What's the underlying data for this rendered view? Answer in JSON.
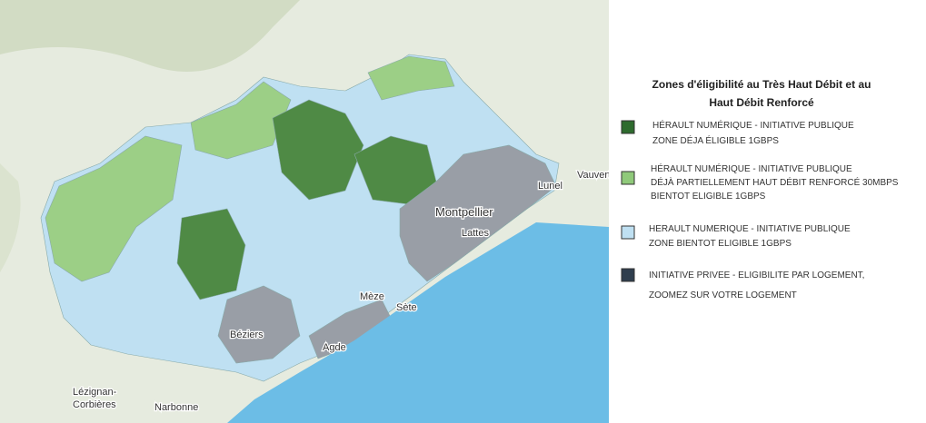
{
  "legend": {
    "title": [
      "Zones d'éligibilité au Très Haut Débit et au",
      "Haut Débit Renforcé"
    ],
    "items": [
      {
        "lines": [
          "HÉRAULT NUMÉRIQUE - INITIATIVE PUBLIQUE",
          "ZONE DÉJA ÉLIGIBLE  1GBPS"
        ]
      },
      {
        "lines": [
          "HÉRAULT NUMÉRIQUE - INITIATIVE PUBLIQUE",
          "DÉJÀ PARTIELLEMENT HAUT DÉBIT RENFORCÉ 30MBPS",
          "BIENTOT ELIGIBLE 1GBPS"
        ]
      },
      {
        "lines": [
          "HERAULT NUMERIQUE - INITIATIVE PUBLIQUE",
          "ZONE BIENTOT ELIGIBLE  1GBPS"
        ]
      },
      {
        "lines": [
          "INITIATIVE PRIVEE - ELIGIBILITE PAR LOGEMENT,",
          "ZOOMEZ SUR VOTRE LOGEMENT"
        ]
      }
    ]
  },
  "places": {
    "montpellier": "Montpellier",
    "lattes": "Lattes",
    "lunel": "Lunel",
    "meze": "Mèze",
    "sete": "Sète",
    "beziers": "Béziers",
    "agde": "Agde",
    "lezignan": [
      "Lézignan-",
      "Corbières"
    ],
    "narbonne": "Narbonne",
    "vauvert": "Vauvert"
  }
}
